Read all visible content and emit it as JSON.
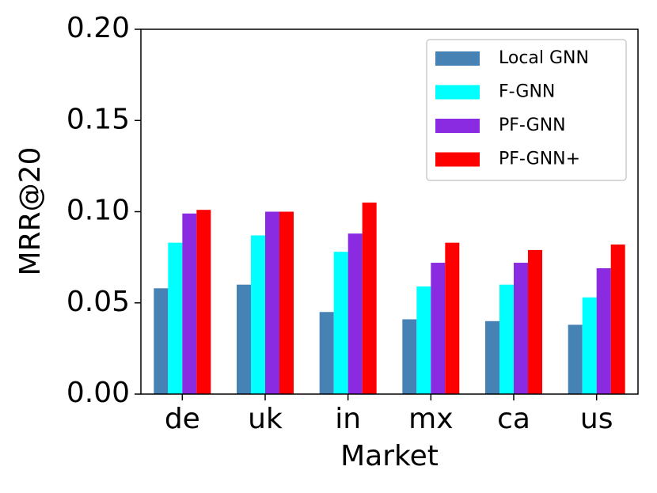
{
  "chart_data": {
    "type": "bar",
    "xlabel": "Market",
    "ylabel": "MRR@20",
    "categories": [
      "de",
      "uk",
      "in",
      "mx",
      "ca",
      "us"
    ],
    "series": [
      {
        "name": "Local GNN",
        "color": "#4682b4",
        "values": [
          0.058,
          0.06,
          0.045,
          0.041,
          0.04,
          0.038
        ]
      },
      {
        "name": "F-GNN",
        "color": "#00ffff",
        "values": [
          0.083,
          0.087,
          0.078,
          0.059,
          0.06,
          0.053
        ]
      },
      {
        "name": "PF-GNN",
        "color": "#8a2be2",
        "values": [
          0.099,
          0.1,
          0.088,
          0.072,
          0.072,
          0.069
        ]
      },
      {
        "name": "PF-GNN+",
        "color": "#ff0000",
        "values": [
          0.101,
          0.1,
          0.105,
          0.083,
          0.079,
          0.082
        ]
      }
    ],
    "ylim": [
      0,
      0.2
    ],
    "yticks": [
      {
        "value": 0,
        "label": "0.00"
      },
      0.05,
      {
        "value": 0.1,
        "label": "0.10"
      },
      0.15,
      {
        "value": 0.2,
        "label": "0.20"
      }
    ],
    "grid": false,
    "legend": "upper right"
  }
}
